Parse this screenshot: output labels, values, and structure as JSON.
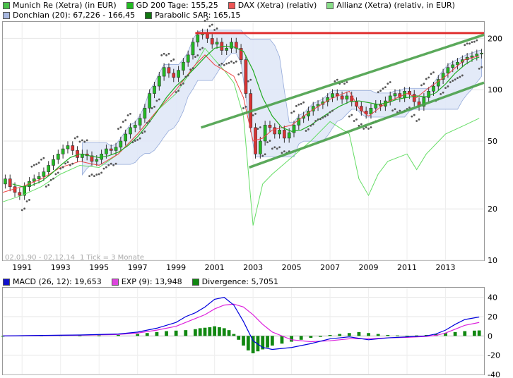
{
  "colors": {
    "candle_up": "#22bb22",
    "candle_down": "#dd3333",
    "gd200": "#22aa22",
    "dax": "#ee4444",
    "allianz": "#66dd66",
    "donchian_fill": "#e0e8f8",
    "donchian_line": "#8aa2d6",
    "sar": "#555555",
    "resistance": "#e03030",
    "channel": "#4aa04a",
    "macd": "#0000dd",
    "signal": "#dd22dd",
    "divergence": "#118811"
  },
  "legend_top": {
    "row1": [
      {
        "label": "Munich Re (Xetra) (in EUR)",
        "color": "#4ac04a"
      },
      {
        "label": "GD 200 Tage: 155,25",
        "color": "#22bb22"
      },
      {
        "label": "DAX (Xetra) (relativ)",
        "color": "#ee5555"
      },
      {
        "label": "Allianz (Xetra) (relativ, in EUR)",
        "color": "#88dd88"
      }
    ],
    "row2": [
      {
        "label": "Donchian (20): 67,226 - 166,45",
        "color": "#a8b8e0"
      },
      {
        "label": "Parabolic SAR: 165,15",
        "color": "#117711"
      }
    ]
  },
  "legend_macd": [
    {
      "label": "MACD (26, 12): 19,653",
      "color": "#1111cc"
    },
    {
      "label": "EXP (9): 13,948",
      "color": "#dd44dd"
    },
    {
      "label": "Divergence: 5,7051",
      "color": "#118811"
    }
  ],
  "footer": {
    "range": "02.01.90 - 02.12.14",
    "tick": "1 Tick = 3 Monate"
  },
  "chart_data": [
    {
      "type": "candlestick",
      "scale": "log",
      "ylim": [
        10,
        250
      ],
      "xlim": [
        1990.0,
        2015.0
      ],
      "x_ticks": [
        "1991",
        "1993",
        "1995",
        "1997",
        "1999",
        "2001",
        "2003",
        "2005",
        "2007",
        "2009",
        "2011",
        "2013"
      ],
      "y_ticks": [
        "200",
        "100",
        "50",
        "20",
        "10"
      ],
      "y_tick_values": [
        200,
        100,
        50,
        20,
        10
      ],
      "series": [
        {
          "name": "Munich Re (Xetra) (in EUR)",
          "x": [
            1990.0,
            1990.25,
            1990.5,
            1990.75,
            1991.0,
            1991.25,
            1991.5,
            1991.75,
            1992.0,
            1992.25,
            1992.5,
            1992.75,
            1993.0,
            1993.25,
            1993.5,
            1993.75,
            1994.0,
            1994.25,
            1994.5,
            1994.75,
            1995.0,
            1995.25,
            1995.5,
            1995.75,
            1996.0,
            1996.25,
            1996.5,
            1996.75,
            1997.0,
            1997.25,
            1997.5,
            1997.75,
            1998.0,
            1998.25,
            1998.5,
            1998.75,
            1999.0,
            1999.25,
            1999.5,
            1999.75,
            2000.0,
            2000.25,
            2000.5,
            2000.75,
            2001.0,
            2001.25,
            2001.5,
            2001.75,
            2002.0,
            2002.25,
            2002.5,
            2002.75,
            2003.0,
            2003.25,
            2003.5,
            2003.75,
            2004.0,
            2004.25,
            2004.5,
            2004.75,
            2005.0,
            2005.25,
            2005.5,
            2005.75,
            2006.0,
            2006.25,
            2006.5,
            2006.75,
            2007.0,
            2007.25,
            2007.5,
            2007.75,
            2008.0,
            2008.25,
            2008.5,
            2008.75,
            2009.0,
            2009.25,
            2009.5,
            2009.75,
            2010.0,
            2010.25,
            2010.5,
            2010.75,
            2011.0,
            2011.25,
            2011.5,
            2011.75,
            2012.0,
            2012.25,
            2012.5,
            2012.75,
            2013.0,
            2013.25,
            2013.5,
            2013.75,
            2014.0,
            2014.25,
            2014.5,
            2014.75
          ],
          "open": [
            28,
            30,
            27,
            25,
            24,
            27,
            29,
            30,
            31,
            33,
            36,
            39,
            42,
            45,
            47,
            44,
            40,
            42,
            41,
            38,
            39,
            42,
            45,
            44,
            46,
            50,
            55,
            60,
            62,
            68,
            78,
            95,
            105,
            120,
            135,
            125,
            118,
            130,
            145,
            160,
            190,
            210,
            215,
            200,
            185,
            190,
            170,
            175,
            190,
            175,
            150,
            95,
            60,
            42,
            50,
            62,
            60,
            55,
            58,
            52,
            56,
            62,
            68,
            70,
            75,
            80,
            82,
            85,
            90,
            95,
            92,
            88,
            92,
            85,
            80,
            75,
            72,
            78,
            82,
            80,
            86,
            92,
            95,
            90,
            98,
            94,
            85,
            80,
            90,
            98,
            105,
            115,
            125,
            135,
            140,
            145,
            150,
            155,
            158,
            162
          ],
          "close": [
            30,
            27,
            25,
            24,
            27,
            29,
            30,
            31,
            33,
            36,
            39,
            42,
            45,
            47,
            44,
            40,
            42,
            41,
            38,
            39,
            42,
            45,
            44,
            46,
            50,
            55,
            60,
            62,
            68,
            78,
            95,
            105,
            120,
            135,
            125,
            118,
            130,
            145,
            160,
            190,
            210,
            215,
            200,
            185,
            190,
            170,
            175,
            190,
            175,
            150,
            95,
            60,
            42,
            50,
            62,
            60,
            55,
            58,
            52,
            56,
            62,
            68,
            70,
            75,
            80,
            82,
            85,
            90,
            95,
            92,
            88,
            92,
            85,
            80,
            75,
            72,
            78,
            82,
            80,
            86,
            92,
            95,
            90,
            98,
            94,
            85,
            80,
            90,
            98,
            105,
            115,
            125,
            135,
            140,
            145,
            150,
            155,
            158,
            162,
            164
          ]
        },
        {
          "name": "GD 200 Tage",
          "x": [
            1990.5,
            1991,
            1991.5,
            1992,
            1992.5,
            1993,
            1993.5,
            1994,
            1994.5,
            1995,
            1995.5,
            1996,
            1996.5,
            1997,
            1997.5,
            1998,
            1998.5,
            1999,
            1999.5,
            2000,
            2000.5,
            2001,
            2001.5,
            2002,
            2002.5,
            2003,
            2003.5,
            2004,
            2004.5,
            2005,
            2005.5,
            2006,
            2006.5,
            2007,
            2007.5,
            2008,
            2008.5,
            2009,
            2009.5,
            2010,
            2010.5,
            2011,
            2011.5,
            2012,
            2012.5,
            2013,
            2013.5,
            2014,
            2014.5,
            2014.75
          ],
          "y": [
            28,
            27,
            27.5,
            29,
            32,
            36,
            40,
            42,
            41,
            40,
            41,
            43,
            47,
            53,
            62,
            74,
            90,
            105,
            118,
            135,
            155,
            175,
            180,
            178,
            168,
            130,
            90,
            70,
            60,
            57,
            58,
            62,
            68,
            74,
            80,
            85,
            86,
            84,
            82,
            84,
            88,
            90,
            92,
            91,
            96,
            108,
            125,
            140,
            152,
            155.25
          ]
        },
        {
          "name": "DAX (Xetra) (relativ)",
          "x": [
            1990,
            1991,
            1992,
            1993,
            1994,
            1995,
            1996,
            1997,
            1998,
            1999,
            2000,
            2000.5,
            2001,
            2001.5,
            2002,
            2002.5,
            2003,
            2003.5,
            2004,
            2005,
            2006,
            2007,
            2008,
            2008.5,
            2009,
            2010,
            2011,
            2011.5,
            2012,
            2013,
            2014,
            2014.75
          ],
          "y": [
            25,
            27,
            30,
            35,
            38,
            36,
            42,
            55,
            75,
            100,
            140,
            160,
            140,
            130,
            120,
            90,
            50,
            52,
            58,
            62,
            75,
            88,
            98,
            78,
            70,
            85,
            95,
            90,
            100,
            120,
            150,
            158
          ]
        },
        {
          "name": "Allianz (Xetra) (relativ, in EUR)",
          "x": [
            1990,
            1991,
            1992,
            1993,
            1994,
            1995,
            1996,
            1997,
            1998,
            1999,
            2000,
            2000.5,
            2001,
            2001.5,
            2002,
            2002.5,
            2003,
            2003.5,
            2004,
            2005,
            2006,
            2007,
            2008,
            2008.5,
            2009,
            2009.5,
            2010,
            2011,
            2011.5,
            2012,
            2013,
            2014,
            2014.75
          ],
          "y": [
            22,
            24,
            27,
            32,
            36,
            35,
            42,
            55,
            75,
            95,
            140,
            175,
            150,
            130,
            110,
            70,
            16,
            28,
            32,
            40,
            50,
            65,
            55,
            30,
            24,
            32,
            38,
            42,
            34,
            42,
            55,
            62,
            68
          ]
        },
        {
          "name": "Donchian (20)",
          "upper_at_end": 166.45,
          "lower_at_end": 67.226
        },
        {
          "name": "Parabolic SAR",
          "value_at_end": 165.15
        }
      ],
      "annotations": {
        "resistance": {
          "x": [
            2000.0,
            2015.0
          ],
          "y": [
            215,
            215
          ]
        },
        "channel_upper": {
          "x": [
            2000.3,
            2015.0
          ],
          "y": [
            60,
            210
          ]
        },
        "channel_lower": {
          "x": [
            2002.8,
            2015.0
          ],
          "y": [
            35,
            110
          ]
        }
      }
    },
    {
      "type": "bar+line",
      "ylim": [
        -40,
        50
      ],
      "y_ticks": [
        "40",
        "20",
        "0",
        "-20",
        "-40"
      ],
      "y_tick_values": [
        40,
        20,
        0,
        -20,
        -40
      ],
      "series": [
        {
          "name": "MACD (26, 12)",
          "x": [
            1990,
            1992,
            1994,
            1996,
            1997,
            1998,
            1999,
            1999.5,
            2000,
            2000.5,
            2001,
            2001.5,
            2002,
            2002.5,
            2003,
            2003.5,
            2004,
            2005,
            2006,
            2007,
            2008,
            2009,
            2010,
            2011,
            2012,
            2012.5,
            2013,
            2013.5,
            2014,
            2014.75
          ],
          "y": [
            0,
            0.5,
            1,
            2,
            4,
            8,
            14,
            20,
            24,
            30,
            38,
            40,
            32,
            15,
            -5,
            -12,
            -14,
            -12,
            -8,
            -3,
            -1,
            -4,
            -2,
            -1,
            0,
            2,
            6,
            12,
            17,
            19.653
          ]
        },
        {
          "name": "EXP (9)",
          "x": [
            1990,
            1992,
            1994,
            1996,
            1997,
            1998,
            1999,
            1999.5,
            2000,
            2000.5,
            2001,
            2001.5,
            2002,
            2002.5,
            2003,
            2003.5,
            2004,
            2005,
            2006,
            2007,
            2008,
            2009,
            2010,
            2011,
            2012,
            2012.5,
            2013,
            2013.5,
            2014,
            2014.75
          ],
          "y": [
            0,
            0.4,
            0.8,
            1.5,
            3,
            6,
            10,
            14,
            18,
            22,
            28,
            32,
            33,
            30,
            22,
            12,
            4,
            -4,
            -6,
            -5,
            -3,
            -3,
            -2,
            -1.5,
            -0.5,
            0.5,
            3,
            7,
            11,
            13.948
          ]
        },
        {
          "name": "Divergence",
          "x": [
            1990,
            1991,
            1992,
            1993,
            1994,
            1995,
            1996,
            1997,
            1997.5,
            1998,
            1998.5,
            1999,
            1999.5,
            2000,
            2000.25,
            2000.5,
            2000.75,
            2001,
            2001.25,
            2001.5,
            2001.75,
            2002,
            2002.25,
            2002.5,
            2002.75,
            2003,
            2003.25,
            2003.5,
            2003.75,
            2004,
            2004.5,
            2005,
            2005.5,
            2006,
            2006.5,
            2007,
            2007.5,
            2008,
            2008.5,
            2009,
            2009.5,
            2010,
            2010.5,
            2011,
            2011.5,
            2012,
            2012.5,
            2013,
            2013.5,
            2014,
            2014.5,
            2014.75
          ],
          "y": [
            0,
            0.5,
            0.5,
            0.8,
            0.5,
            0.5,
            1,
            2,
            3,
            4,
            5,
            5.5,
            6,
            7,
            8,
            8.5,
            9,
            10,
            9,
            8,
            6,
            2,
            -4,
            -10,
            -15,
            -18,
            -16,
            -14,
            -12,
            -10,
            -8,
            -6,
            -4,
            -2,
            -1,
            1,
            2,
            3,
            4,
            3,
            2,
            1,
            0.5,
            0.2,
            0.5,
            1,
            2,
            3,
            4,
            5,
            5.5,
            5.7051
          ]
        }
      ]
    }
  ]
}
